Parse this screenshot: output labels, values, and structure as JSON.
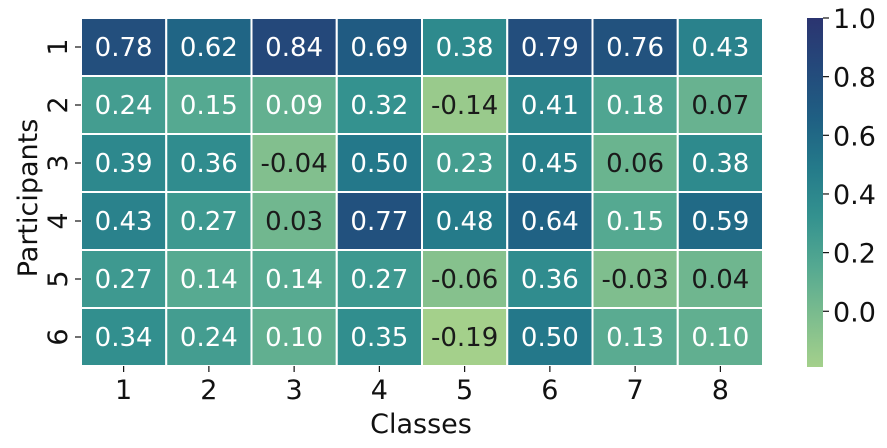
{
  "chart_data": {
    "type": "heatmap",
    "title": "",
    "xlabel": "Classes",
    "ylabel": "Participants",
    "x_categories": [
      "1",
      "2",
      "3",
      "4",
      "5",
      "6",
      "7",
      "8"
    ],
    "y_categories": [
      "1",
      "2",
      "3",
      "4",
      "5",
      "6"
    ],
    "values": [
      [
        0.78,
        0.62,
        0.84,
        0.69,
        0.38,
        0.79,
        0.76,
        0.43
      ],
      [
        0.24,
        0.15,
        0.09,
        0.32,
        -0.14,
        0.41,
        0.18,
        0.07
      ],
      [
        0.39,
        0.36,
        -0.04,
        0.5,
        0.23,
        0.45,
        0.06,
        0.38
      ],
      [
        0.43,
        0.27,
        0.03,
        0.77,
        0.48,
        0.64,
        0.15,
        0.59
      ],
      [
        0.27,
        0.14,
        0.14,
        0.27,
        -0.06,
        0.36,
        -0.03,
        0.04
      ],
      [
        0.34,
        0.24,
        0.1,
        0.35,
        -0.19,
        0.5,
        0.13,
        0.1
      ]
    ],
    "colorbar": {
      "min": -0.19,
      "max": 1.0,
      "ticks": [
        0.0,
        0.2,
        0.4,
        0.6,
        0.8,
        1.0
      ],
      "tick_labels": [
        "0.0",
        "0.2",
        "0.4",
        "0.6",
        "0.8",
        "1.0"
      ]
    },
    "colormap": [
      "#a4d08b",
      "#7dbd8e",
      "#55a991",
      "#34928f",
      "#247a8a",
      "#1f5f83",
      "#24497b",
      "#2b3470"
    ],
    "annotation_colors": {
      "light": "#ffffff",
      "dark": "#1a1a1a"
    },
    "grid": false,
    "legend": "colorbar-right"
  }
}
